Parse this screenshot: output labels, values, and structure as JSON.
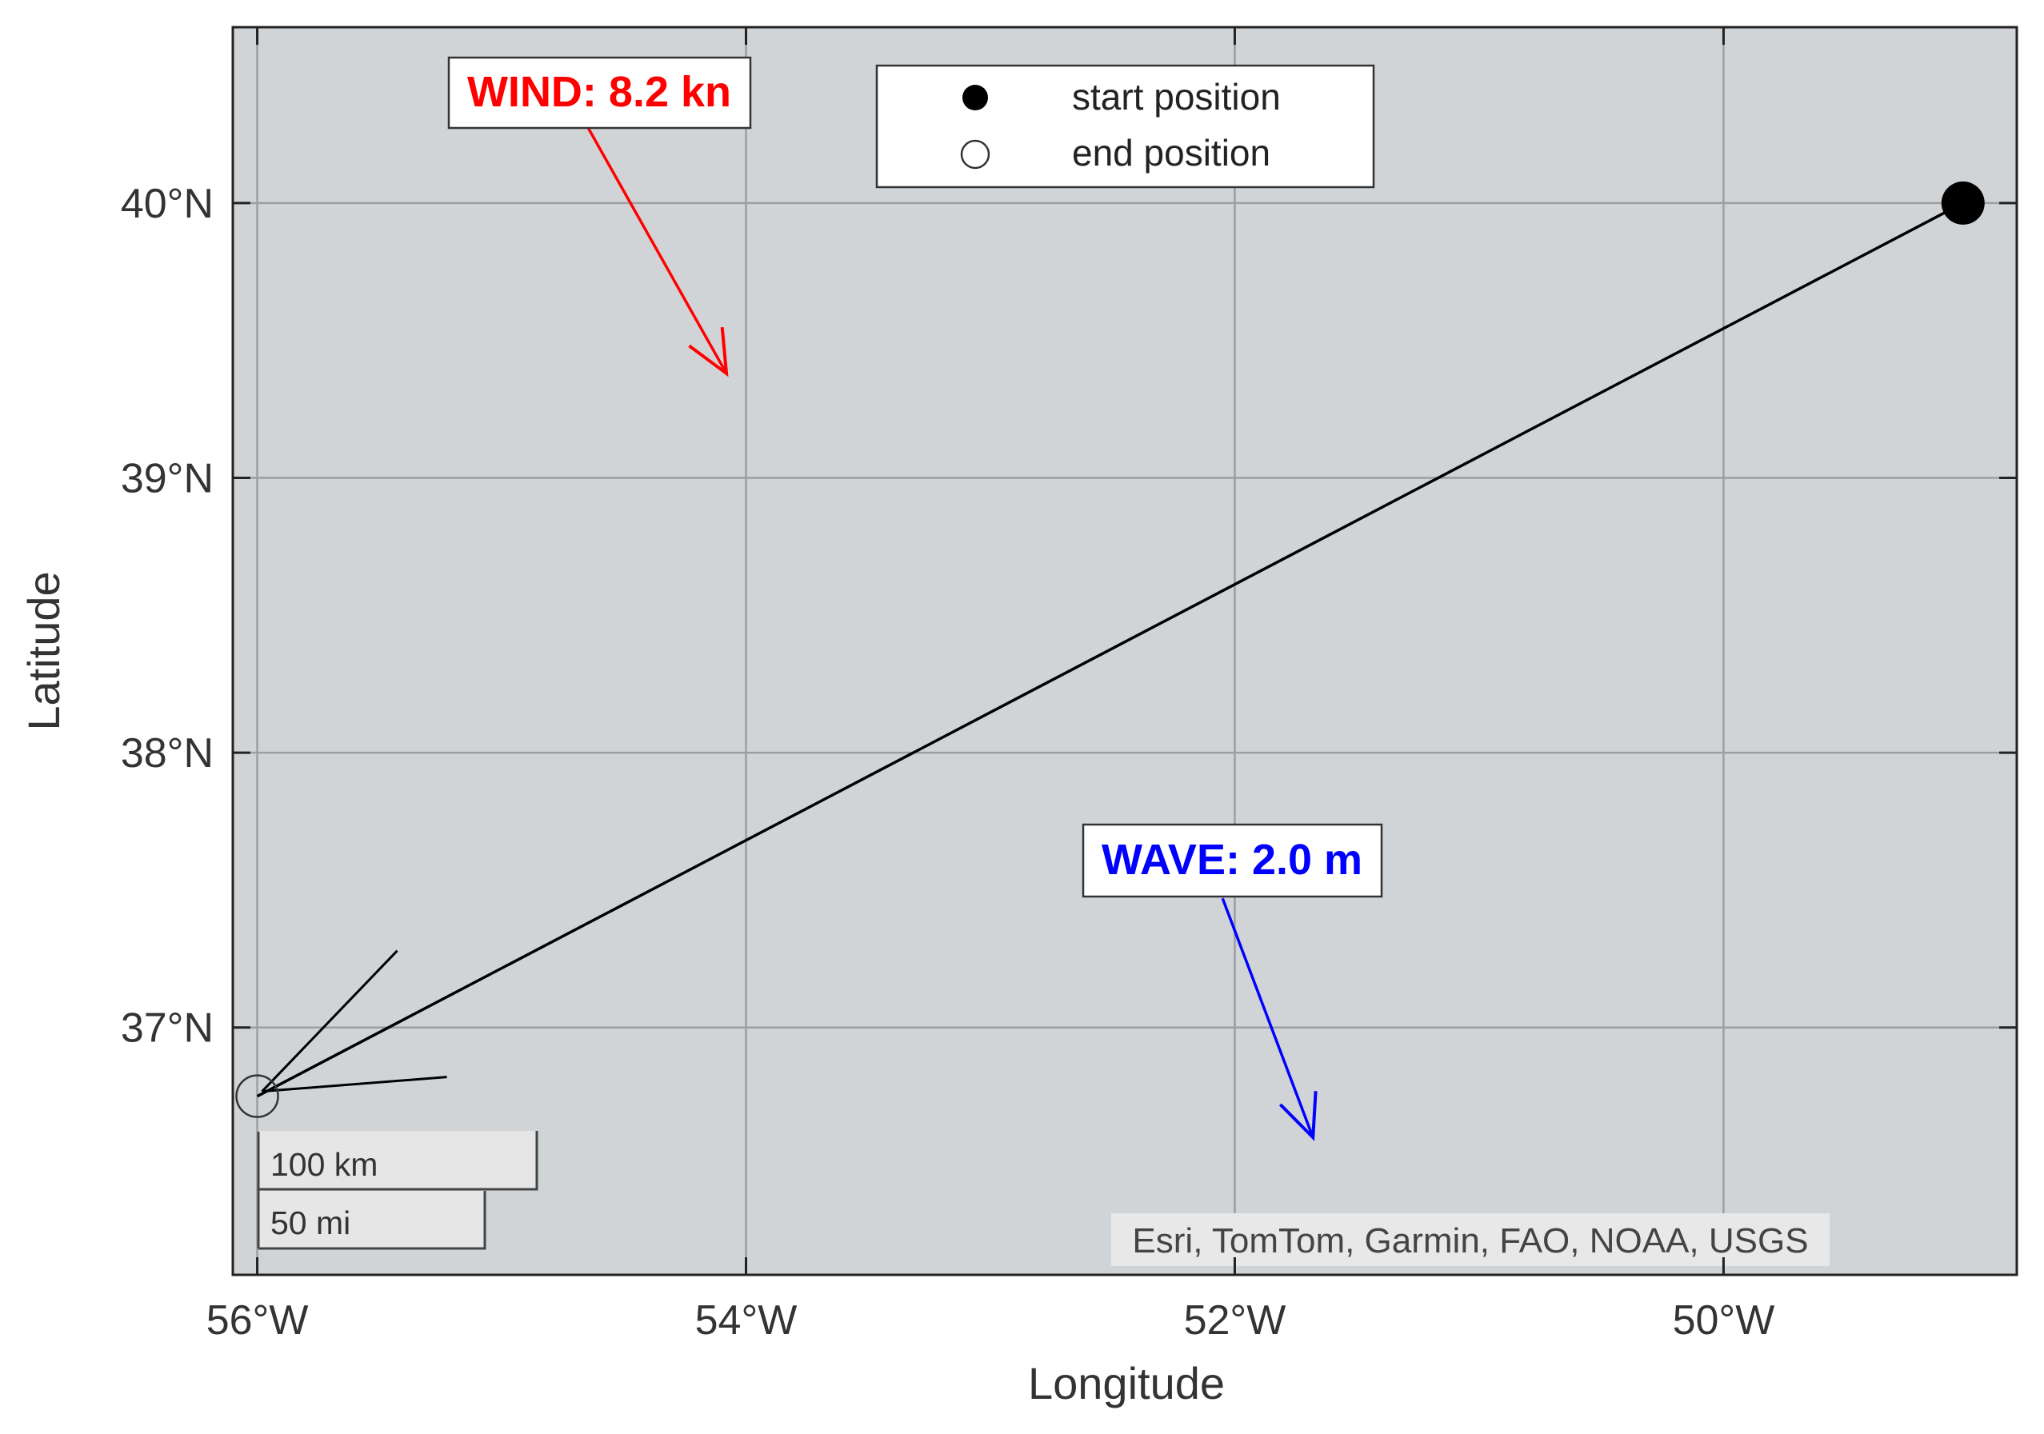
{
  "axes": {
    "xlabel": "Longitude",
    "ylabel": "Latitude",
    "xlim": [
      -56.1,
      -48.8
    ],
    "ylim": [
      36.1,
      40.64
    ],
    "xticks": [
      {
        "value": -56,
        "label": "56°W"
      },
      {
        "value": -54,
        "label": "54°W"
      },
      {
        "value": -52,
        "label": "52°W"
      },
      {
        "value": -50,
        "label": "50°W"
      }
    ],
    "yticks": [
      {
        "value": 40,
        "label": "40°N"
      },
      {
        "value": 39,
        "label": "39°N"
      },
      {
        "value": 38,
        "label": "38°N"
      },
      {
        "value": 37,
        "label": "37°N"
      }
    ],
    "grid": true,
    "background_color": "#d1d4d6"
  },
  "track": {
    "start": {
      "lon": -49.02,
      "lat": 40.0
    },
    "end": {
      "lon": -56.0,
      "lat": 36.75
    },
    "color": "#000000"
  },
  "legend": {
    "placement": "top-center",
    "start_label": "start position",
    "end_label": "end position"
  },
  "wind": {
    "label": "WIND: 8.2 kn",
    "color": "#ff0000",
    "arrow_from": {
      "lon": -54.65,
      "lat": 40.28
    },
    "arrow_to": {
      "lon": -54.08,
      "lat": 39.38
    }
  },
  "wave": {
    "label": "WAVE: 2.0 m",
    "color": "#0000ff",
    "arrow_from": {
      "lon": -52.05,
      "lat": 37.47
    },
    "arrow_to": {
      "lon": -51.68,
      "lat": 36.6
    }
  },
  "scalebar": {
    "km_label": "100 km",
    "mi_label": "50 mi"
  },
  "attribution": "Esri, TomTom, Garmin, FAO, NOAA, USGS"
}
